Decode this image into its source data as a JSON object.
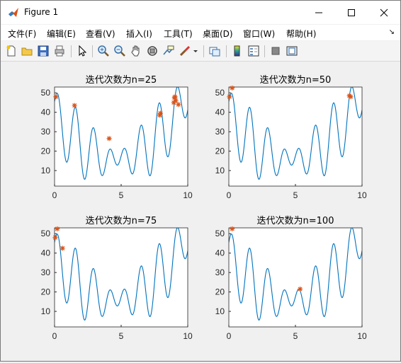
{
  "window": {
    "title": "Figure 1"
  },
  "menu": [
    "文件(F)",
    "编辑(E)",
    "查看(V)",
    "插入(I)",
    "工具(T)",
    "桌面(D)",
    "窗口(W)",
    "帮助(H)"
  ],
  "toolbar": {
    "icons": [
      "new-figure-icon",
      "open-file-icon",
      "save-icon",
      "print-icon",
      "pointer-icon",
      "zoom-in-icon",
      "zoom-out-icon",
      "pan-icon",
      "rotate-3d-icon",
      "data-cursor-icon",
      "brush-icon",
      "link-plot-icon",
      "colorbar-icon",
      "legend-icon",
      "hide-plot-tools-icon",
      "show-plot-tools-icon"
    ]
  },
  "colors": {
    "curve": "#0072bd",
    "marker": "#d95319"
  },
  "chart_data": [
    {
      "type": "line",
      "title": "迭代次数为n=25",
      "xlim": [
        0,
        10
      ],
      "ylim": [
        2,
        53
      ],
      "xticks": [
        0,
        5,
        10
      ],
      "yticks": [
        10,
        20,
        30,
        40,
        50
      ],
      "series": [
        {
          "type": "scatter",
          "marker": "*",
          "x": [
            0.1,
            1.5,
            4.1,
            7.9,
            7.95,
            8.95,
            9.0,
            9.05,
            9.1,
            9.3
          ],
          "y": [
            48,
            43.5,
            26.5,
            38.5,
            39.5,
            45,
            47.5,
            48,
            46,
            44
          ]
        }
      ]
    },
    {
      "type": "line",
      "title": "迭代次数为n=50",
      "xlim": [
        0,
        10
      ],
      "ylim": [
        2,
        53
      ],
      "xticks": [
        0,
        5,
        10
      ],
      "yticks": [
        10,
        20,
        30,
        40,
        50
      ],
      "series": [
        {
          "type": "scatter",
          "marker": "*",
          "x": [
            0.05,
            0.25,
            9.05,
            9.15
          ],
          "y": [
            48,
            52.5,
            48.5,
            48
          ]
        }
      ]
    },
    {
      "type": "line",
      "title": "迭代次数为n=75",
      "xlim": [
        0,
        10
      ],
      "ylim": [
        2,
        53
      ],
      "xticks": [
        0,
        5,
        10
      ],
      "yticks": [
        10,
        20,
        30,
        40,
        50
      ],
      "series": [
        {
          "type": "scatter",
          "marker": "*",
          "x": [
            0.05,
            0.2,
            0.6
          ],
          "y": [
            48,
            52.5,
            42.5
          ]
        }
      ]
    },
    {
      "type": "line",
      "title": "迭代次数为n=100",
      "xlim": [
        0,
        10
      ],
      "ylim": [
        2,
        53
      ],
      "xticks": [
        0,
        5,
        10
      ],
      "yticks": [
        10,
        20,
        30,
        40,
        50
      ],
      "series": [
        {
          "type": "scatter",
          "marker": "*",
          "x": [
            0.25,
            5.35
          ],
          "y": [
            52.5,
            21.5
          ]
        }
      ]
    }
  ]
}
